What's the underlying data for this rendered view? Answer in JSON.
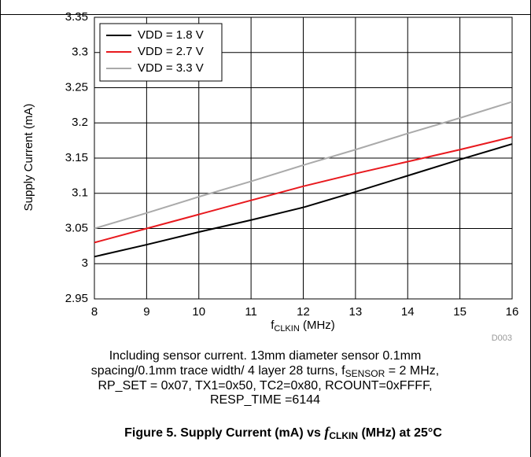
{
  "chart_data": {
    "type": "line",
    "x": [
      8,
      9,
      10,
      11,
      12,
      13,
      14,
      15,
      16
    ],
    "series": [
      {
        "name": "VDD = 1.8 V",
        "color": "#000000",
        "values": [
          3.01,
          3.027,
          3.045,
          3.062,
          3.08,
          3.102,
          3.125,
          3.148,
          3.17
        ]
      },
      {
        "name": "VDD = 2.7 V",
        "color": "#e8191e",
        "values": [
          3.03,
          3.05,
          3.07,
          3.09,
          3.11,
          3.128,
          3.145,
          3.162,
          3.18
        ]
      },
      {
        "name": "VDD = 3.3 V",
        "color": "#aaaaaa",
        "values": [
          3.05,
          3.072,
          3.095,
          3.117,
          3.14,
          3.162,
          3.185,
          3.207,
          3.23
        ]
      }
    ],
    "xlim": [
      8,
      16
    ],
    "xticks": [
      8,
      9,
      10,
      11,
      12,
      13,
      14,
      15,
      16
    ],
    "ylim": [
      2.95,
      3.35
    ],
    "yticks": [
      2.95,
      3,
      3.05,
      3.1,
      3.15,
      3.2,
      3.25,
      3.3,
      3.35
    ],
    "grid": true,
    "legend": "upper left",
    "y_label": "Supply Current (mA)",
    "x_label": {
      "main": "f",
      "sub": "CLKIN",
      "rest": " (MHz)"
    },
    "note": "D003",
    "caption": {
      "line1": "Including sensor current. 13mm diameter sensor 0.1mm",
      "line2": "spacing/0.1mm trace width/ 4 layer 28 turns, f",
      "line2_sub": "SENSOR",
      "line2_rest": " = 2 MHz,",
      "line3": "RP_SET = 0x07, TX1=0x50, TC2=0x80, RCOUNT=0xFFFF,",
      "line4": "RESP_TIME =6144"
    },
    "figure_title": {
      "main": "Figure 5. Supply Current (mA) vs ",
      "f": "f",
      "sub": "CLKIN",
      "rest": " (MHz) at 25°C"
    }
  }
}
